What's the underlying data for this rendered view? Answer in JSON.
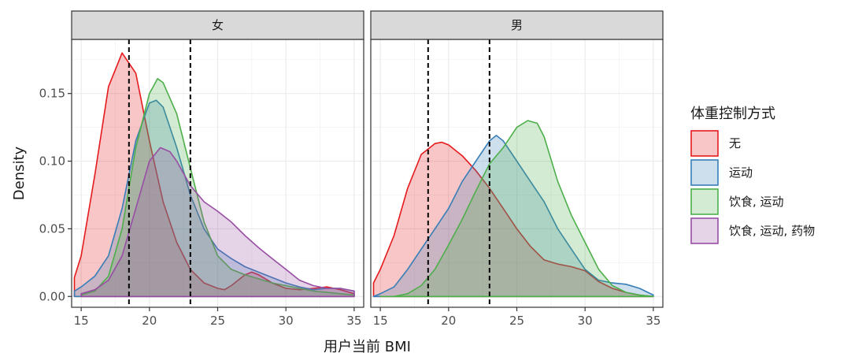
{
  "chart_data": {
    "type": "area",
    "subtype": "density",
    "xlabel": "用户当前 BMI",
    "ylabel": "Density",
    "xlim": [
      14.3,
      35.7
    ],
    "ylim": [
      -0.008,
      0.19
    ],
    "x_ticks": [
      15,
      20,
      25,
      30,
      35
    ],
    "x_tick_labels": [
      "15",
      "20",
      "25",
      "30",
      "35"
    ],
    "y_ticks": [
      0,
      0.05,
      0.1,
      0.15
    ],
    "y_tick_labels": [
      "0.00",
      "0.05",
      "0.10",
      "0.15"
    ],
    "grid": true,
    "reference_lines_x": [
      18.5,
      23
    ],
    "legend": {
      "title": "体重控制方式",
      "position": "right",
      "items": [
        {
          "label": "无",
          "color": "#E41A1C"
        },
        {
          "label": "运动",
          "color": "#377EB8"
        },
        {
          "label": "饮食, 运动",
          "color": "#4DAF4A"
        },
        {
          "label": "饮食, 运动, 药物",
          "color": "#984EA3"
        }
      ]
    },
    "panels": [
      {
        "label": "女",
        "series": [
          {
            "name": "无",
            "color": "#E41A1C",
            "points": [
              [
                14.5,
                0.014
              ],
              [
                15,
                0.03
              ],
              [
                16,
                0.09
              ],
              [
                17,
                0.155
              ],
              [
                18,
                0.18
              ],
              [
                19,
                0.165
              ],
              [
                20,
                0.115
              ],
              [
                21,
                0.07
              ],
              [
                22,
                0.04
              ],
              [
                23,
                0.02
              ],
              [
                24,
                0.01
              ],
              [
                25,
                0.006
              ],
              [
                25.5,
                0.005
              ],
              [
                26,
                0.008
              ],
              [
                27,
                0.016
              ],
              [
                27.5,
                0.018
              ],
              [
                28,
                0.016
              ],
              [
                29,
                0.01
              ],
              [
                30,
                0.006
              ],
              [
                31,
                0.005
              ],
              [
                32,
                0.006
              ],
              [
                33,
                0.007
              ],
              [
                34,
                0.005
              ],
              [
                35,
                0.002
              ]
            ]
          },
          {
            "name": "运动",
            "color": "#377EB8",
            "points": [
              [
                14.5,
                0.004
              ],
              [
                15,
                0.007
              ],
              [
                16,
                0.015
              ],
              [
                17,
                0.03
              ],
              [
                18,
                0.065
              ],
              [
                19,
                0.115
              ],
              [
                20,
                0.143
              ],
              [
                20.5,
                0.145
              ],
              [
                21,
                0.14
              ],
              [
                22,
                0.11
              ],
              [
                23,
                0.075
              ],
              [
                24,
                0.05
              ],
              [
                25,
                0.035
              ],
              [
                26,
                0.028
              ],
              [
                27,
                0.022
              ],
              [
                28,
                0.018
              ],
              [
                29,
                0.014
              ],
              [
                30,
                0.01
              ],
              [
                31,
                0.007
              ],
              [
                32,
                0.005
              ],
              [
                33,
                0.006
              ],
              [
                34,
                0.006
              ],
              [
                35,
                0.004
              ]
            ]
          },
          {
            "name": "饮食, 运动",
            "color": "#4DAF4A",
            "points": [
              [
                15,
                0.001
              ],
              [
                16,
                0.004
              ],
              [
                17,
                0.015
              ],
              [
                18,
                0.05
              ],
              [
                19,
                0.11
              ],
              [
                20,
                0.15
              ],
              [
                20.6,
                0.161
              ],
              [
                21,
                0.158
              ],
              [
                22,
                0.135
              ],
              [
                23,
                0.095
              ],
              [
                24,
                0.055
              ],
              [
                25,
                0.03
              ],
              [
                26,
                0.02
              ],
              [
                27,
                0.016
              ],
              [
                28,
                0.013
              ],
              [
                29,
                0.01
              ],
              [
                30,
                0.008
              ],
              [
                31,
                0.006
              ],
              [
                32,
                0.004
              ],
              [
                33,
                0.003
              ],
              [
                34,
                0.002
              ],
              [
                35,
                0.001
              ]
            ]
          },
          {
            "name": "饮食, 运动, 药物",
            "color": "#984EA3",
            "points": [
              [
                15,
                0.002
              ],
              [
                16,
                0.005
              ],
              [
                17,
                0.012
              ],
              [
                18,
                0.03
              ],
              [
                19,
                0.065
              ],
              [
                20,
                0.1
              ],
              [
                20.8,
                0.11
              ],
              [
                21.5,
                0.107
              ],
              [
                22,
                0.1
              ],
              [
                23,
                0.082
              ],
              [
                24,
                0.07
              ],
              [
                25,
                0.063
              ],
              [
                26,
                0.055
              ],
              [
                27,
                0.045
              ],
              [
                28,
                0.036
              ],
              [
                29,
                0.028
              ],
              [
                30,
                0.02
              ],
              [
                31,
                0.012
              ],
              [
                32,
                0.008
              ],
              [
                33,
                0.006
              ],
              [
                34,
                0.006
              ],
              [
                35,
                0.004
              ]
            ]
          }
        ]
      },
      {
        "label": "男",
        "series": [
          {
            "name": "无",
            "color": "#E41A1C",
            "points": [
              [
                14.5,
                0.01
              ],
              [
                15,
                0.02
              ],
              [
                16,
                0.045
              ],
              [
                17,
                0.08
              ],
              [
                18,
                0.105
              ],
              [
                19,
                0.113
              ],
              [
                19.5,
                0.114
              ],
              [
                20,
                0.112
              ],
              [
                21,
                0.104
              ],
              [
                22,
                0.093
              ],
              [
                23,
                0.08
              ],
              [
                24,
                0.065
              ],
              [
                25,
                0.05
              ],
              [
                26,
                0.037
              ],
              [
                27,
                0.027
              ],
              [
                28,
                0.024
              ],
              [
                29,
                0.022
              ],
              [
                30,
                0.019
              ],
              [
                31,
                0.011
              ],
              [
                32,
                0.006
              ],
              [
                33,
                0.003
              ],
              [
                34,
                0.001
              ],
              [
                35,
                0.0
              ]
            ]
          },
          {
            "name": "运动",
            "color": "#377EB8",
            "points": [
              [
                14.5,
                0.0
              ],
              [
                15,
                0.002
              ],
              [
                16,
                0.007
              ],
              [
                17,
                0.02
              ],
              [
                18,
                0.035
              ],
              [
                19,
                0.05
              ],
              [
                20,
                0.065
              ],
              [
                21,
                0.085
              ],
              [
                22,
                0.1
              ],
              [
                23,
                0.115
              ],
              [
                23.5,
                0.119
              ],
              [
                24,
                0.115
              ],
              [
                25,
                0.1
              ],
              [
                26,
                0.085
              ],
              [
                27,
                0.07
              ],
              [
                28,
                0.05
              ],
              [
                29,
                0.035
              ],
              [
                30,
                0.02
              ],
              [
                31,
                0.012
              ],
              [
                32,
                0.01
              ],
              [
                33,
                0.009
              ],
              [
                34,
                0.006
              ],
              [
                35,
                0.001
              ]
            ]
          },
          {
            "name": "饮食, 运动",
            "color": "#4DAF4A",
            "points": [
              [
                15,
                0.0
              ],
              [
                16,
                0.0
              ],
              [
                17,
                0.002
              ],
              [
                18,
                0.008
              ],
              [
                19,
                0.02
              ],
              [
                20,
                0.038
              ],
              [
                21,
                0.057
              ],
              [
                22,
                0.078
              ],
              [
                23,
                0.098
              ],
              [
                24,
                0.11
              ],
              [
                25,
                0.125
              ],
              [
                25.8,
                0.13
              ],
              [
                26.5,
                0.128
              ],
              [
                27,
                0.118
              ],
              [
                28,
                0.085
              ],
              [
                29,
                0.06
              ],
              [
                30,
                0.04
              ],
              [
                31,
                0.02
              ],
              [
                32,
                0.008
              ],
              [
                33,
                0.003
              ],
              [
                34,
                0.001
              ],
              [
                35,
                0.0
              ]
            ]
          }
        ]
      }
    ]
  }
}
